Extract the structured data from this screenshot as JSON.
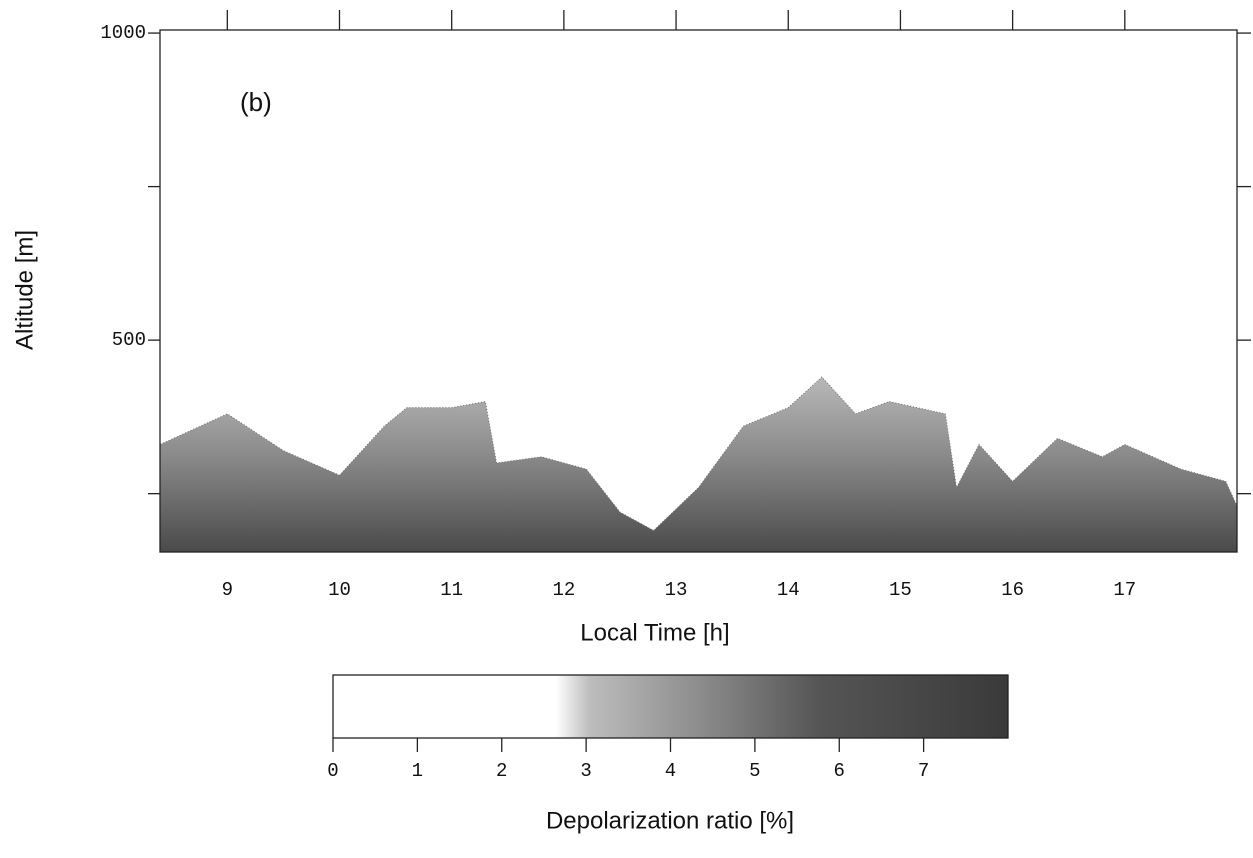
{
  "chart_data": {
    "type": "area",
    "annotation": "(b)",
    "x_label": "Local Time [h]",
    "y_label": "Altitude [m]",
    "x": [
      8.4,
      9.0,
      9.5,
      10.0,
      10.4,
      10.6,
      11.0,
      11.3,
      11.4,
      11.8,
      12.2,
      12.5,
      12.8,
      13.2,
      13.6,
      14.0,
      14.3,
      14.6,
      14.9,
      15.4,
      15.5,
      15.7,
      16.0,
      16.4,
      16.8,
      17.0,
      17.5,
      17.9,
      18.0
    ],
    "values": [
      330,
      380,
      320,
      280,
      360,
      390,
      390,
      400,
      300,
      310,
      290,
      220,
      190,
      260,
      360,
      390,
      440,
      380,
      400,
      380,
      260,
      330,
      270,
      340,
      310,
      330,
      290,
      270,
      230
    ],
    "color": "#6e6e6e",
    "xlim": [
      8.4,
      18.0
    ],
    "ylim": [
      155,
      1005
    ],
    "xticks": [
      9,
      10,
      11,
      12,
      13,
      14,
      15,
      16,
      17
    ],
    "yticks": [
      500,
      1000
    ],
    "yminorticks": [
      250,
      750
    ],
    "colorbar": {
      "label": "Depolarization ratio [%]",
      "lim": [
        0,
        8
      ],
      "ticks": [
        0,
        1,
        2,
        3,
        4,
        5,
        6,
        7
      ]
    }
  }
}
